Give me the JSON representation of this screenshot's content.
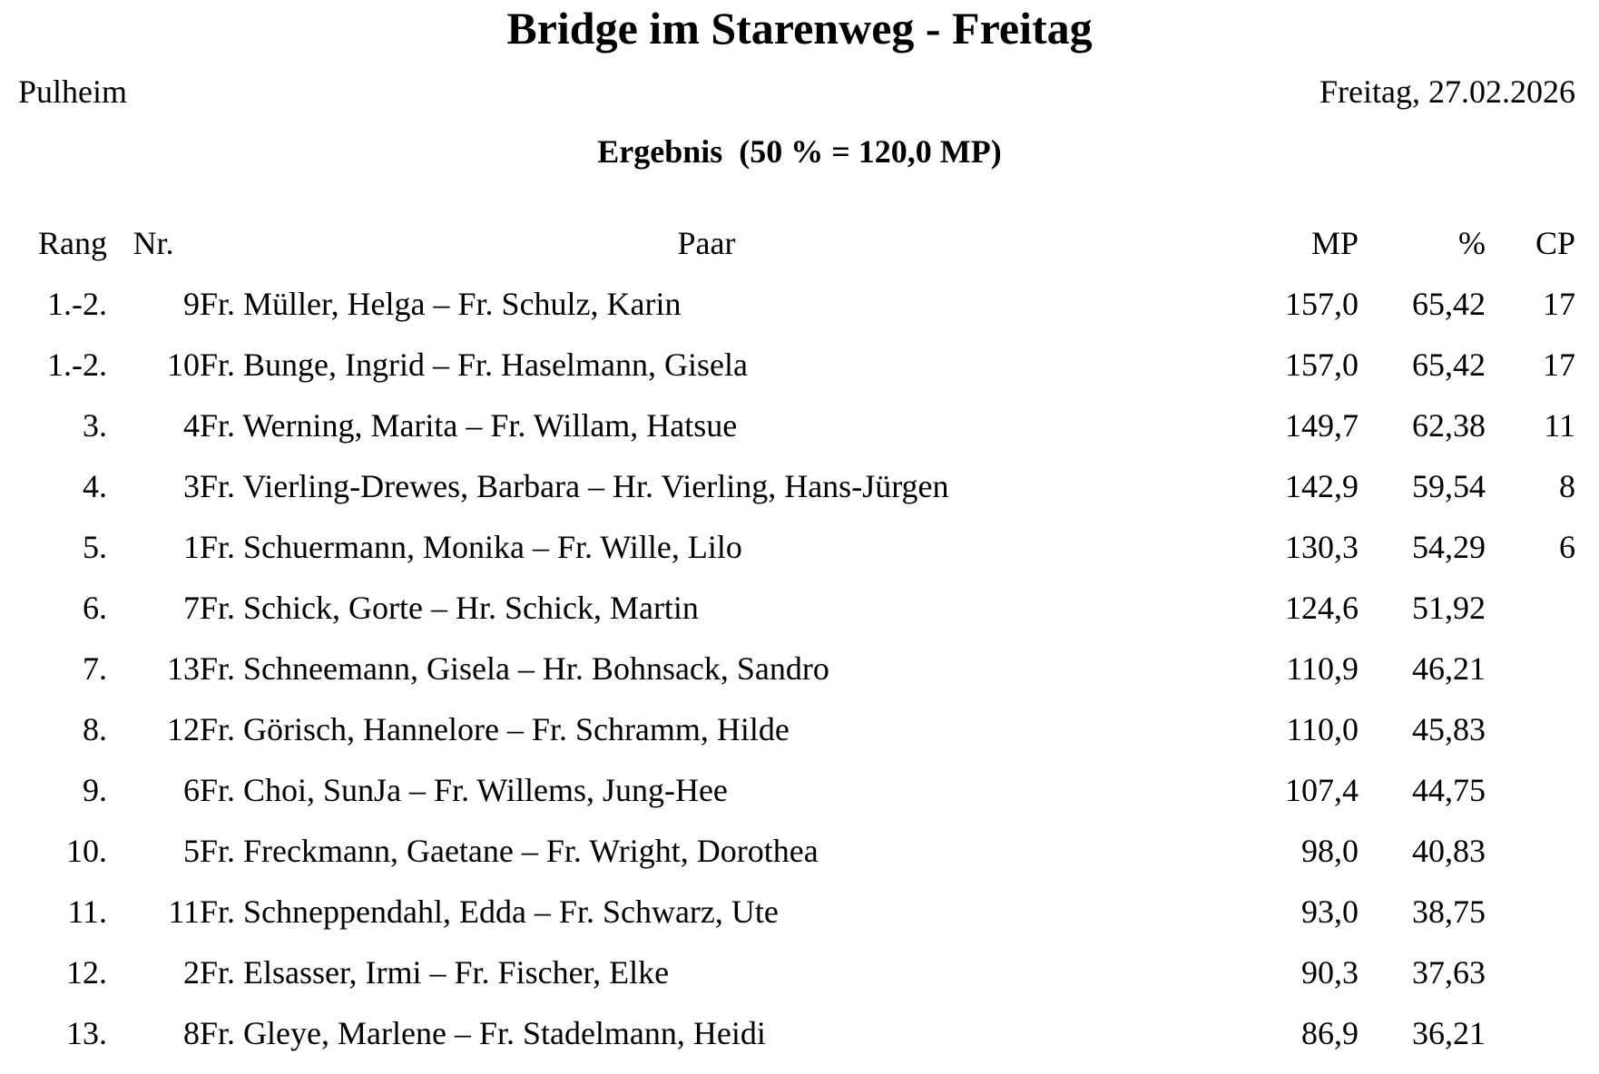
{
  "header": {
    "title": "Bridge im Starenweg - Freitag",
    "location": "Pulheim",
    "date": "Freitag, 27.02.2026",
    "subtitle": "Ergebnis  (50 % = 120,0 MP)"
  },
  "table": {
    "columns": {
      "rang": "Rang",
      "nr": "Nr.",
      "paar": "Paar",
      "mp": "MP",
      "pct": "%",
      "cp": "CP"
    },
    "rows": [
      {
        "rang": "1.-2.",
        "nr": "9",
        "paar": "Fr. Müller, Helga – Fr. Schulz, Karin",
        "mp": "157,0",
        "pct": "65,42",
        "cp": "17"
      },
      {
        "rang": "1.-2.",
        "nr": "10",
        "paar": "Fr. Bunge, Ingrid – Fr. Haselmann, Gisela",
        "mp": "157,0",
        "pct": "65,42",
        "cp": "17"
      },
      {
        "rang": "3.",
        "nr": "4",
        "paar": "Fr. Werning, Marita – Fr. Willam, Hatsue",
        "mp": "149,7",
        "pct": "62,38",
        "cp": "11"
      },
      {
        "rang": "4.",
        "nr": "3",
        "paar": "Fr. Vierling-Drewes, Barbara – Hr. Vierling, Hans-Jürgen",
        "mp": "142,9",
        "pct": "59,54",
        "cp": "8"
      },
      {
        "rang": "5.",
        "nr": "1",
        "paar": "Fr. Schuermann, Monika – Fr. Wille, Lilo",
        "mp": "130,3",
        "pct": "54,29",
        "cp": "6"
      },
      {
        "rang": "6.",
        "nr": "7",
        "paar": "Fr. Schick, Gorte – Hr. Schick, Martin",
        "mp": "124,6",
        "pct": "51,92",
        "cp": ""
      },
      {
        "rang": "7.",
        "nr": "13",
        "paar": "Fr. Schneemann, Gisela – Hr. Bohnsack, Sandro",
        "mp": "110,9",
        "pct": "46,21",
        "cp": ""
      },
      {
        "rang": "8.",
        "nr": "12",
        "paar": "Fr. Görisch, Hannelore – Fr. Schramm, Hilde",
        "mp": "110,0",
        "pct": "45,83",
        "cp": ""
      },
      {
        "rang": "9.",
        "nr": "6",
        "paar": "Fr. Choi, SunJa – Fr. Willems, Jung-Hee",
        "mp": "107,4",
        "pct": "44,75",
        "cp": ""
      },
      {
        "rang": "10.",
        "nr": "5",
        "paar": "Fr. Freckmann, Gaetane – Fr. Wright, Dorothea",
        "mp": "98,0",
        "pct": "40,83",
        "cp": ""
      },
      {
        "rang": "11.",
        "nr": "11",
        "paar": "Fr. Schneppendahl, Edda – Fr. Schwarz, Ute",
        "mp": "93,0",
        "pct": "38,75",
        "cp": ""
      },
      {
        "rang": "12.",
        "nr": "2",
        "paar": "Fr. Elsasser, Irmi – Fr. Fischer, Elke",
        "mp": "90,3",
        "pct": "37,63",
        "cp": ""
      },
      {
        "rang": "13.",
        "nr": "8",
        "paar": "Fr. Gleye, Marlene – Fr. Stadelmann, Heidi",
        "mp": "86,9",
        "pct": "36,21",
        "cp": ""
      }
    ]
  }
}
